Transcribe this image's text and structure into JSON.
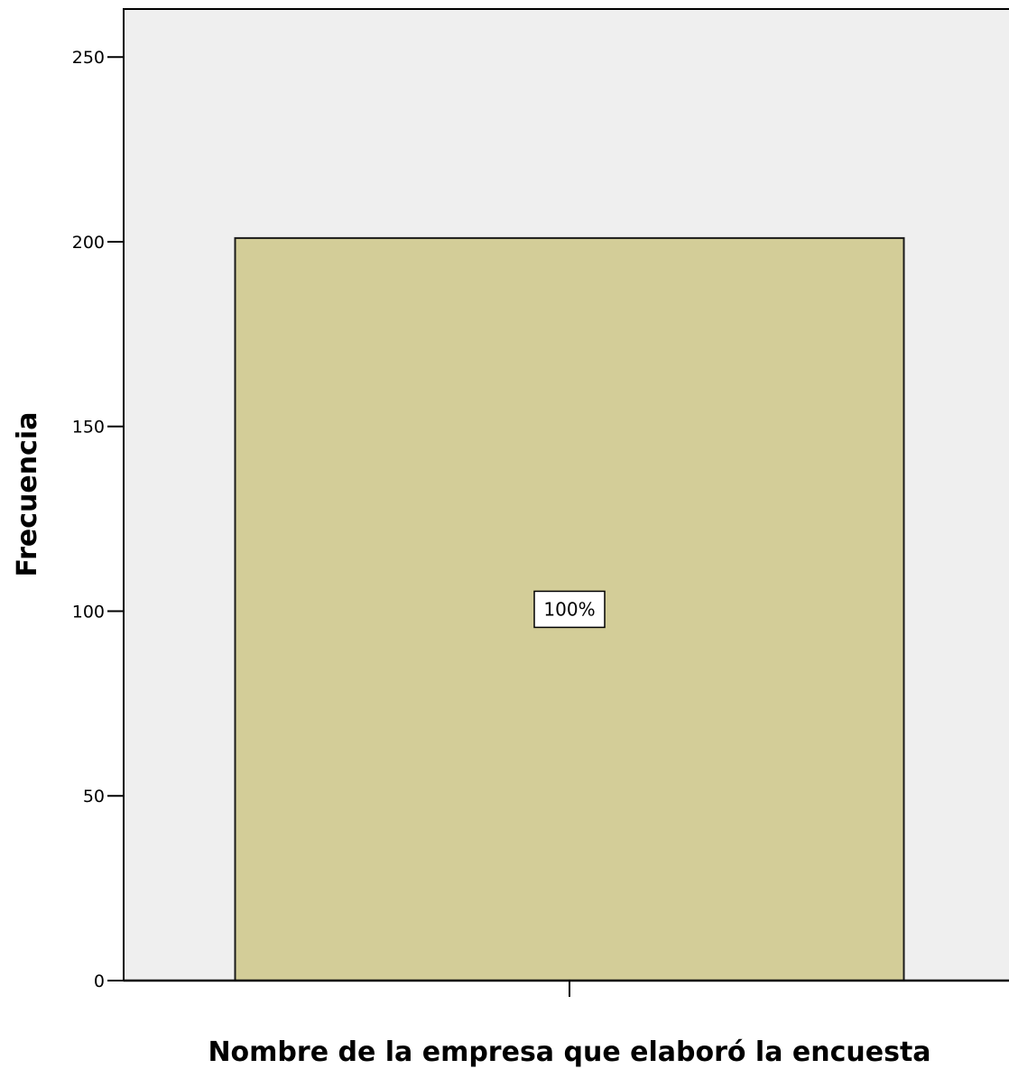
{
  "chart_data": {
    "type": "bar",
    "title": "",
    "categories": [
      ""
    ],
    "values": [
      201
    ],
    "data_labels": [
      "100%"
    ],
    "xlabel": "Nombre de la empresa que elaboró la encuesta",
    "ylabel": "Frecuencia",
    "ylim": [
      0,
      263
    ],
    "yticks": [
      0,
      50,
      100,
      150,
      200,
      250
    ],
    "grid": false,
    "colors": {
      "plot_background": "#efefef",
      "bar_fill": "#d3cd98",
      "bar_stroke": "#1a1a1a",
      "axis": "#000000",
      "label_box_fill": "#ffffff"
    }
  }
}
